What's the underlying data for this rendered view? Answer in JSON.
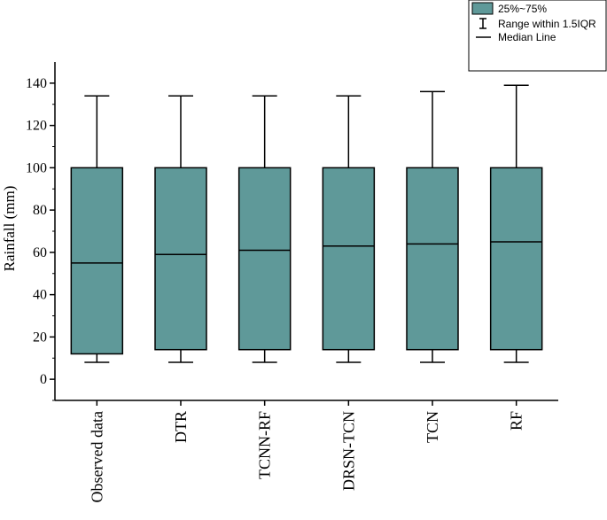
{
  "chart_data": {
    "type": "box",
    "title": "",
    "xlabel": "",
    "ylabel": "Rainfall (mm)",
    "ylim": [
      -10,
      150
    ],
    "yticks": [
      0,
      20,
      40,
      60,
      80,
      100,
      120,
      140
    ],
    "grid": false,
    "box_color": "#5f9999",
    "categories": [
      "Observed data",
      "DTR",
      "TCNN-RF",
      "DRSN-TCN",
      "TCN",
      "RF"
    ],
    "boxes": [
      {
        "min": 8,
        "q1": 12,
        "median": 55,
        "q3": 100,
        "max": 134
      },
      {
        "min": 8,
        "q1": 14,
        "median": 59,
        "q3": 100,
        "max": 134
      },
      {
        "min": 8,
        "q1": 14,
        "median": 61,
        "q3": 100,
        "max": 134
      },
      {
        "min": 8,
        "q1": 14,
        "median": 63,
        "q3": 100,
        "max": 134
      },
      {
        "min": 8,
        "q1": 14,
        "median": 64,
        "q3": 100,
        "max": 136
      },
      {
        "min": 8,
        "q1": 14,
        "median": 65,
        "q3": 100,
        "max": 139
      }
    ],
    "legend": {
      "placement": "top-right",
      "items": [
        "25%~75%",
        "Range within 1.5IQR",
        "Median Line"
      ]
    }
  }
}
